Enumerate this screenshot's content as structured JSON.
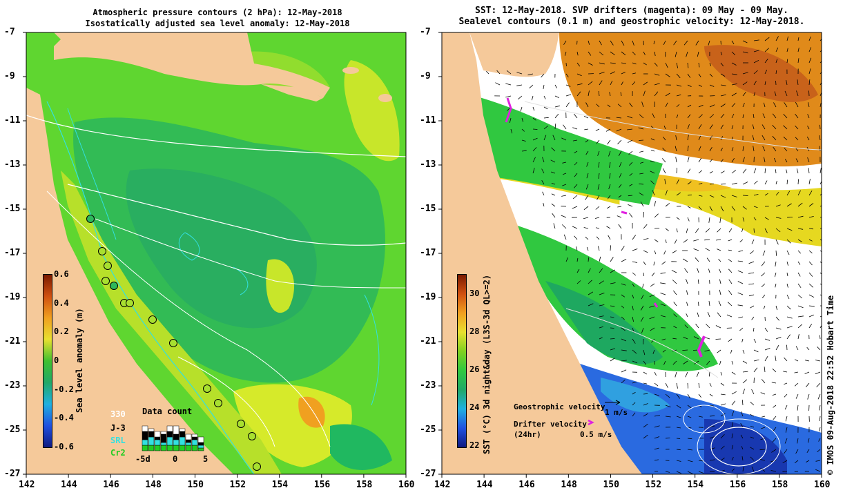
{
  "left_panel": {
    "title_line1": "Atmospheric pressure contours (2 hPa): 12-May-2018",
    "title_line2": "Isostatically adjusted sea level anomaly: 12-May-2018",
    "colorbar": {
      "label": "Sea level anomaly (m)",
      "ticks": [
        "0.6",
        "0.4",
        "0.2",
        "0",
        "-0.2",
        "-0.4",
        "-0.6"
      ],
      "range": [
        -0.6,
        0.6
      ]
    },
    "data_count": {
      "title": "Data count",
      "satellites": [
        {
          "name": "330",
          "color": "#ffffff"
        },
        {
          "name": "J-3",
          "color": "#000000"
        },
        {
          "name": "SRL",
          "color": "#33e0e0"
        },
        {
          "name": "Cr2",
          "color": "#22cc22"
        }
      ],
      "axis_labels": [
        "-5d",
        "0",
        "5"
      ]
    }
  },
  "right_panel": {
    "title_line1": "SST: 12-May-2018. SVP drifters (magenta): 09 May - 09 May.",
    "title_line2": "Sealevel contours (0.1 m) and geostrophic velocity: 12-May-2018.",
    "colorbar": {
      "label": "SST (°C) 3d night&day (L3S-3d QL>=2)",
      "ticks": [
        "30",
        "28",
        "26",
        "24",
        "22"
      ],
      "range": [
        22,
        31
      ]
    },
    "geostrophic_label": "Geostrophic velocity",
    "geostrophic_scale": "1 m/s",
    "drifter_label_1": "Drifter velocity",
    "drifter_label_2": "(24hr)",
    "drifter_scale": "0.5 m/s",
    "credit": "© IMOS 09-Aug-2018 22:52 Hobart Time"
  },
  "axes": {
    "lon_ticks": [
      "142",
      "144",
      "146",
      "148",
      "150",
      "152",
      "154",
      "156",
      "158",
      "160"
    ],
    "lat_ticks": [
      "-7",
      "-9",
      "-11",
      "-13",
      "-15",
      "-17",
      "-19",
      "-21",
      "-23",
      "-25",
      "-27"
    ]
  },
  "colors": {
    "land": "#f5c99a",
    "sla_green": "#5fd630",
    "sla_dark_green": "#2eb85a",
    "sla_yellow": "#d6ea2a",
    "sst_orange": "#e08a1a",
    "sst_yellow": "#e6d820",
    "sst_green": "#30c840",
    "sst_blue": "#2a6ae0",
    "drifter": "#e020e0"
  }
}
